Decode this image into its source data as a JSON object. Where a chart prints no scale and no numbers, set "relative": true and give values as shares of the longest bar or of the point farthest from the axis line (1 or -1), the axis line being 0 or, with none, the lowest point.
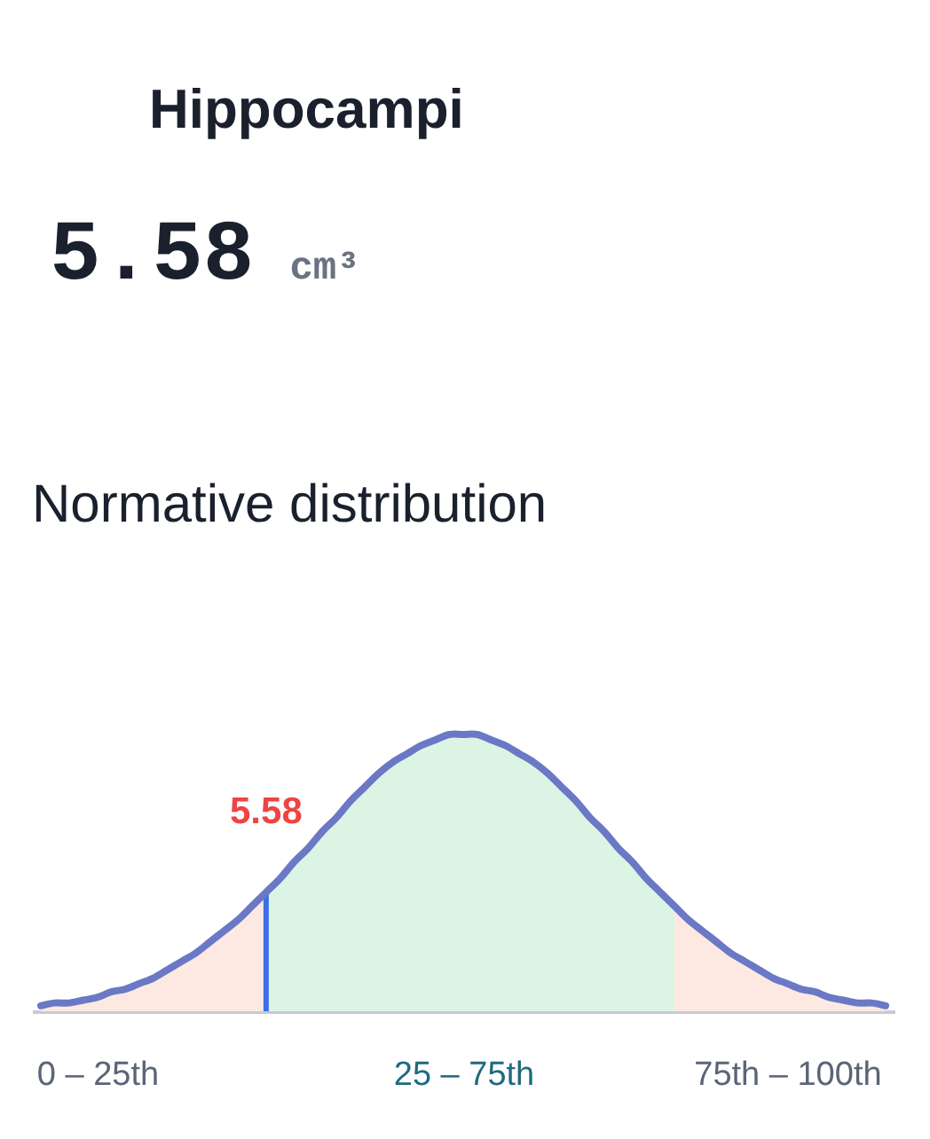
{
  "chart_data": [
    {
      "type": "other",
      "title": "Hippocampi",
      "annotations": [
        "5.58",
        "cm³"
      ]
    },
    {
      "type": "line",
      "title": "Normative distribution",
      "relative": true,
      "categories": [
        null,
        null,
        null,
        null,
        "0 – 25th",
        null,
        null,
        null,
        null,
        null,
        null,
        null,
        null,
        null,
        null,
        null,
        null,
        null,
        null,
        null,
        null,
        null,
        null,
        null,
        null,
        null,
        null,
        null,
        null,
        null,
        "25 – 75th",
        null,
        null,
        null,
        null,
        null,
        null,
        null,
        null,
        null,
        null,
        null,
        null,
        null,
        null,
        null,
        null,
        null,
        null,
        null,
        null,
        null,
        null,
        "75th – 100th",
        null,
        null,
        null,
        null,
        null,
        null,
        null
      ],
      "series": [
        {
          "type": "area",
          "color": "#fde9e1",
          "values": [
            0.02,
            0.03,
            0.03,
            0.04,
            0.05,
            0.07,
            0.08,
            0.1,
            0.12,
            0.15,
            0.18,
            0.21,
            0.25,
            0.29,
            0.33,
            0.38,
            0.43,
            null,
            null,
            null,
            null,
            null,
            null,
            null,
            null,
            null,
            null,
            null,
            null,
            null,
            null,
            null,
            null,
            null,
            null,
            null,
            null,
            null,
            null,
            null,
            null,
            null,
            null,
            null,
            null,
            null,
            null,
            null,
            null,
            null,
            null,
            null,
            null,
            null,
            null,
            null,
            null,
            null,
            null,
            null,
            null
          ]
        },
        {
          "type": "area",
          "color": "#dcf4e4",
          "values": [
            null,
            null,
            null,
            null,
            null,
            null,
            null,
            null,
            null,
            null,
            null,
            null,
            null,
            null,
            null,
            null,
            0.43,
            0.48,
            0.54,
            0.59,
            0.65,
            0.7,
            0.76,
            0.81,
            0.86,
            0.9,
            0.93,
            0.96,
            0.98,
            1.0,
            1.0,
            1.0,
            0.98,
            0.96,
            0.93,
            0.9,
            0.86,
            0.81,
            0.76,
            0.7,
            0.65,
            0.59,
            0.54,
            0.48,
            0.43,
            0.38,
            null,
            null,
            null,
            null,
            null,
            null,
            null,
            null,
            null,
            null,
            null,
            null,
            null,
            null,
            null
          ]
        },
        {
          "type": "area",
          "color": "#fde9e1",
          "values": [
            null,
            null,
            null,
            null,
            null,
            null,
            null,
            null,
            null,
            null,
            null,
            null,
            null,
            null,
            null,
            null,
            null,
            null,
            null,
            null,
            null,
            null,
            null,
            null,
            null,
            null,
            null,
            null,
            null,
            null,
            null,
            null,
            null,
            null,
            null,
            null,
            null,
            null,
            null,
            null,
            null,
            null,
            null,
            null,
            null,
            0.38,
            0.33,
            0.29,
            0.25,
            0.21,
            0.18,
            0.15,
            0.12,
            0.1,
            0.08,
            0.07,
            0.05,
            0.04,
            0.03,
            0.03,
            0.02
          ]
        },
        {
          "type": "bar",
          "color": "#3b6fe8",
          "values": [
            null,
            null,
            null,
            null,
            null,
            null,
            null,
            null,
            null,
            null,
            null,
            null,
            null,
            null,
            null,
            null,
            0.43,
            null,
            null,
            null,
            null,
            null,
            null,
            null,
            null,
            null,
            null,
            null,
            null,
            null,
            null,
            null,
            null,
            null,
            null,
            null,
            null,
            null,
            null,
            null,
            null,
            null,
            null,
            null,
            null,
            null,
            null,
            null,
            null,
            null,
            null,
            null,
            null,
            null,
            null,
            null,
            null,
            null,
            null,
            null,
            null
          ]
        },
        {
          "type": "line",
          "color": "#6b78c6",
          "values": [
            0.02,
            0.03,
            0.03,
            0.04,
            0.05,
            0.07,
            0.08,
            0.1,
            0.12,
            0.15,
            0.18,
            0.21,
            0.25,
            0.29,
            0.33,
            0.38,
            0.43,
            0.48,
            0.54,
            0.59,
            0.65,
            0.7,
            0.76,
            0.81,
            0.86,
            0.9,
            0.93,
            0.96,
            0.98,
            1.0,
            1.0,
            1.0,
            0.98,
            0.96,
            0.93,
            0.9,
            0.86,
            0.81,
            0.76,
            0.7,
            0.65,
            0.59,
            0.54,
            0.48,
            0.43,
            0.38,
            0.33,
            0.29,
            0.25,
            0.21,
            0.18,
            0.15,
            0.12,
            0.1,
            0.08,
            0.07,
            0.05,
            0.04,
            0.03,
            0.03,
            0.02
          ]
        }
      ],
      "annotations": [
        "5.58"
      ]
    }
  ]
}
